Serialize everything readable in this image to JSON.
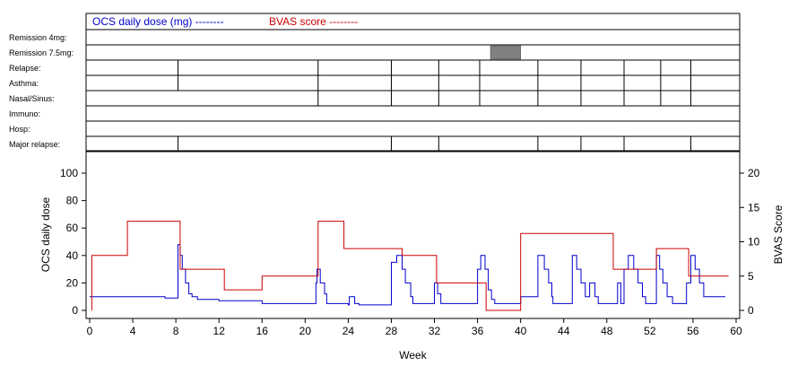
{
  "chart_data": {
    "type": "line",
    "legend": {
      "ocs": "OCS daily dose (mg) --------",
      "bvas": "BVAS score --------",
      "ocs_color": "#0000cc",
      "bvas_color": "#cc0000"
    },
    "row_labels": [
      "Remission 4mg:",
      "Remission 7.5mg:",
      "Relapse:",
      "Asthma:",
      "Nasal/Sinus:",
      "Immuno:",
      "Hosp:",
      "Major relapse:"
    ],
    "row_dividers": {
      "Relapse:": [
        8.2,
        21.2,
        28.0,
        32.4,
        36.2,
        41.6,
        45.6,
        49.6,
        53.0,
        55.8
      ],
      "Asthma:": [
        8.2,
        21.2,
        28.0,
        32.4,
        36.2,
        41.6,
        45.6,
        49.6,
        53.0,
        55.8
      ],
      "Nasal/Sinus:": [
        21.2,
        28.0,
        32.4,
        36.2,
        41.6,
        45.6,
        49.6,
        53.0,
        55.8
      ],
      "Major relapse:": [
        8.2,
        28.0,
        32.4,
        41.6,
        45.6,
        49.6,
        55.8
      ]
    },
    "remission_7_5mg_block": [
      37.2,
      40.0
    ],
    "xlabel": "Week",
    "ylabel_left": "OCS daily dose",
    "ylabel_right": "BVAS Score",
    "xlim": [
      0,
      60
    ],
    "ylim_left": [
      0,
      100
    ],
    "ylim_right": [
      0,
      20
    ],
    "x_ticks": [
      0,
      4,
      8,
      12,
      16,
      20,
      24,
      28,
      32,
      36,
      40,
      44,
      48,
      52,
      56,
      60
    ],
    "y_ticks_left": [
      0,
      20,
      40,
      60,
      80,
      100
    ],
    "y_ticks_right": [
      0,
      5,
      10,
      15,
      20
    ],
    "series": [
      {
        "name": "OCS daily dose (mg)",
        "axis": "left",
        "step": true,
        "points": [
          [
            0,
            10
          ],
          [
            4,
            10
          ],
          [
            7,
            9
          ],
          [
            8.2,
            9
          ],
          [
            8.2,
            48
          ],
          [
            8.4,
            40
          ],
          [
            8.6,
            30
          ],
          [
            8.9,
            20
          ],
          [
            9.2,
            12
          ],
          [
            9.5,
            10
          ],
          [
            10,
            8
          ],
          [
            12,
            7
          ],
          [
            16,
            5
          ],
          [
            20,
            5
          ],
          [
            21,
            20
          ],
          [
            21.1,
            30
          ],
          [
            21.4,
            20
          ],
          [
            21.8,
            12
          ],
          [
            22,
            5
          ],
          [
            24,
            4
          ],
          [
            24.1,
            10
          ],
          [
            24.6,
            5
          ],
          [
            25,
            4
          ],
          [
            28,
            4
          ],
          [
            28,
            35
          ],
          [
            28.5,
            40
          ],
          [
            29,
            30
          ],
          [
            29.3,
            20
          ],
          [
            29.8,
            10
          ],
          [
            30,
            5
          ],
          [
            32,
            5
          ],
          [
            32,
            20
          ],
          [
            32.3,
            12
          ],
          [
            32.6,
            5
          ],
          [
            36,
            5
          ],
          [
            36,
            30
          ],
          [
            36.3,
            40
          ],
          [
            36.7,
            30
          ],
          [
            37,
            15
          ],
          [
            37.3,
            8
          ],
          [
            37.6,
            5
          ],
          [
            40,
            5
          ],
          [
            40,
            10
          ],
          [
            41,
            10
          ],
          [
            41.6,
            40
          ],
          [
            42.2,
            30
          ],
          [
            42.6,
            20
          ],
          [
            42.9,
            10
          ],
          [
            43,
            5
          ],
          [
            44.6,
            5
          ],
          [
            44.8,
            40
          ],
          [
            45.2,
            30
          ],
          [
            45.6,
            20
          ],
          [
            46,
            10
          ],
          [
            46.4,
            20
          ],
          [
            46.9,
            10
          ],
          [
            47.2,
            5
          ],
          [
            48,
            5
          ],
          [
            49,
            20
          ],
          [
            49.3,
            5
          ],
          [
            49.6,
            30
          ],
          [
            50,
            40
          ],
          [
            50.5,
            30
          ],
          [
            50.9,
            20
          ],
          [
            51.3,
            10
          ],
          [
            51.6,
            5
          ],
          [
            52,
            5
          ],
          [
            52.6,
            40
          ],
          [
            52.9,
            30
          ],
          [
            53.2,
            20
          ],
          [
            53.6,
            10
          ],
          [
            54.1,
            5
          ],
          [
            55,
            5
          ],
          [
            55.4,
            20
          ],
          [
            55.8,
            40
          ],
          [
            56.2,
            30
          ],
          [
            56.6,
            20
          ],
          [
            57,
            10
          ],
          [
            59,
            10
          ]
        ]
      },
      {
        "name": "BVAS score",
        "axis": "right",
        "step": true,
        "points": [
          [
            0.2,
            0
          ],
          [
            0.2,
            8
          ],
          [
            3.5,
            8
          ],
          [
            3.5,
            13
          ],
          [
            8.4,
            13
          ],
          [
            8.4,
            6
          ],
          [
            12.5,
            6
          ],
          [
            12.5,
            3
          ],
          [
            16,
            3
          ],
          [
            16,
            5
          ],
          [
            21.2,
            5
          ],
          [
            21.2,
            13
          ],
          [
            23.6,
            13
          ],
          [
            23.6,
            9
          ],
          [
            29,
            9
          ],
          [
            29,
            8
          ],
          [
            32.2,
            8
          ],
          [
            32.2,
            4
          ],
          [
            36.8,
            4
          ],
          [
            36.8,
            0
          ],
          [
            40,
            0
          ],
          [
            40,
            11.2
          ],
          [
            48.6,
            11.2
          ],
          [
            48.6,
            6
          ],
          [
            52.6,
            6
          ],
          [
            52.6,
            9
          ],
          [
            55.6,
            9
          ],
          [
            55.6,
            5
          ],
          [
            59.3,
            5
          ]
        ]
      }
    ]
  }
}
